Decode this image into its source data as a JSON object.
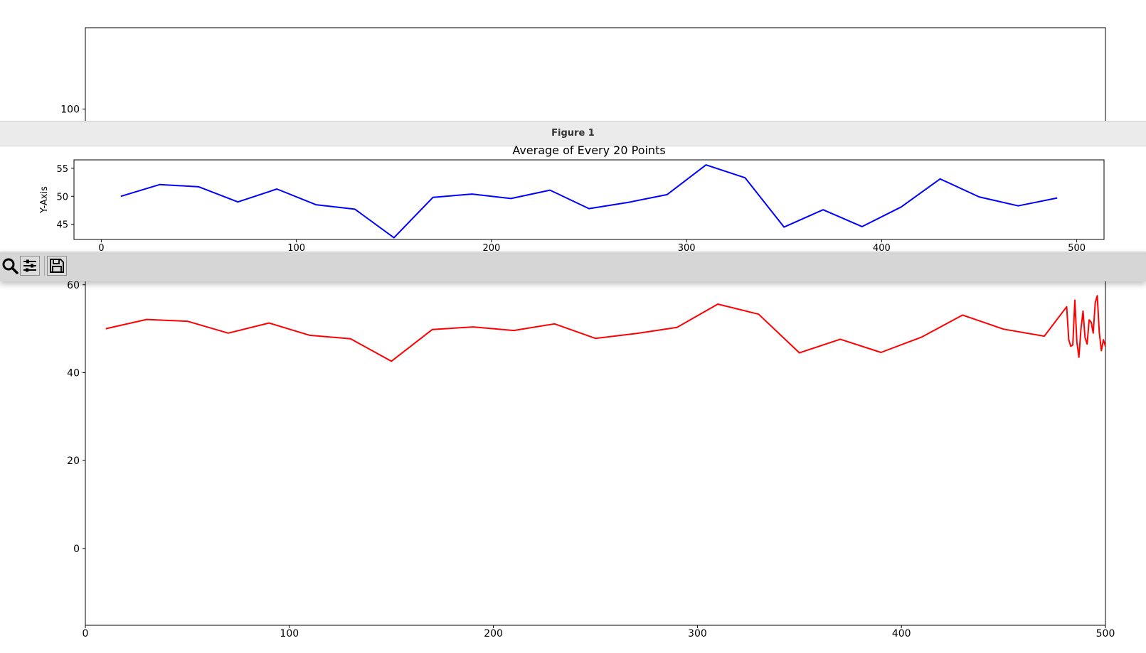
{
  "back_figure": {
    "chart_data": {
      "type": "line",
      "x": [
        10,
        30,
        50,
        70,
        90,
        110,
        130,
        150,
        170,
        190,
        210,
        230,
        250,
        270,
        290,
        310,
        330,
        350,
        370,
        390,
        410,
        430,
        450,
        470,
        481,
        482,
        483,
        484,
        485,
        486,
        487,
        488,
        489,
        490,
        491,
        492,
        493,
        494,
        495,
        496,
        497,
        498,
        499,
        500
      ],
      "series": [
        {
          "color": "#ff0000",
          "values": [
            50.0,
            52.1,
            51.7,
            49.0,
            51.3,
            48.5,
            47.7,
            42.6,
            49.8,
            50.4,
            49.6,
            51.1,
            47.8,
            48.9,
            50.3,
            55.6,
            53.3,
            44.5,
            47.6,
            44.6,
            48.1,
            53.1,
            49.9,
            48.3,
            55.0,
            47.5,
            46.0,
            46.3,
            56.5,
            47.0,
            43.5,
            50.0,
            54.0,
            48.0,
            46.5,
            52.0,
            51.5,
            49.0,
            56.0,
            57.5,
            49.0,
            45.0,
            47.5,
            46.0
          ]
        }
      ],
      "xlim": [
        0,
        500
      ],
      "ylim": [
        -17.5,
        118.5
      ],
      "xticks": [
        "0",
        "100",
        "200",
        "300",
        "400",
        "500"
      ],
      "yticks": [
        "0",
        "20",
        "40",
        "60",
        "100"
      ],
      "title": "",
      "xlabel": "",
      "ylabel": "",
      "grid": false
    }
  },
  "window": {
    "title": "Figure 1"
  },
  "front_figure": {
    "chart_data": {
      "type": "line",
      "title": "Average of Every 20 Points",
      "ylabel": "Y-Axis",
      "xlabel": "",
      "x": [
        10,
        30,
        50,
        70,
        90,
        110,
        130,
        150,
        170,
        190,
        210,
        230,
        250,
        270,
        290,
        310,
        330,
        350,
        370,
        390,
        410,
        430,
        450,
        470,
        490
      ],
      "series": [
        {
          "color": "#0000ff",
          "values": [
            50.0,
            52.1,
            51.7,
            49.0,
            51.3,
            48.5,
            47.7,
            42.6,
            49.8,
            50.4,
            49.6,
            51.1,
            47.8,
            48.9,
            50.3,
            55.6,
            53.3,
            44.5,
            47.6,
            44.6,
            48.1,
            53.1,
            49.9,
            48.3,
            49.7
          ]
        }
      ],
      "xlim": [
        -14,
        514
      ],
      "ylim": [
        42.3,
        56.5
      ],
      "xticks": [
        "0",
        "100",
        "200",
        "300",
        "400",
        "500"
      ],
      "yticks": [
        "45",
        "50",
        "55"
      ],
      "grid": false
    }
  },
  "toolbar": {
    "buttons": [
      {
        "icon": "zoom-icon"
      },
      {
        "icon": "configure-subplots-icon"
      },
      {
        "icon": "save-icon"
      }
    ]
  }
}
